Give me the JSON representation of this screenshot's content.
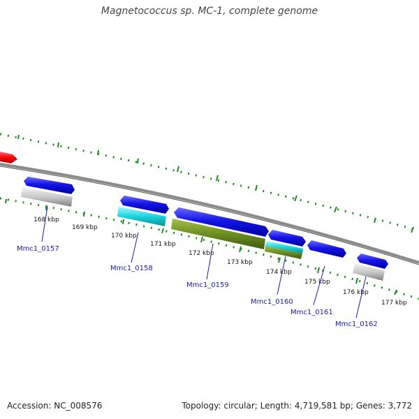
{
  "title": "Magnetococcus sp. MC-1, complete genome",
  "accession": "Accession: NC_008576",
  "topology": "Topology: circular; Length: 4,719,581 bp; Genes: 3,772",
  "tick_labels": [
    "168 kbp",
    "169 kbp",
    "170 kbp",
    "171 kbp",
    "172 kbp",
    "173 kbp",
    "174 kbp",
    "175 kbp",
    "176 kbp",
    "177 kbp"
  ],
  "gene_labels": [
    "Mmc1_0157",
    "Mmc1_0158",
    "Mmc1_0159",
    "Mmc1_0160",
    "Mmc1_0161",
    "Mmc1_0162"
  ],
  "colors": {
    "backbone": "#777777",
    "forward_cds": "#1414e6",
    "rna_or_other": "#00cfd8",
    "olive_feature": "#6b8e23",
    "gray_feature": "#bdbdbd",
    "upstream_arrow": "#ff0000",
    "tick_green": "#1f8a1f"
  }
}
